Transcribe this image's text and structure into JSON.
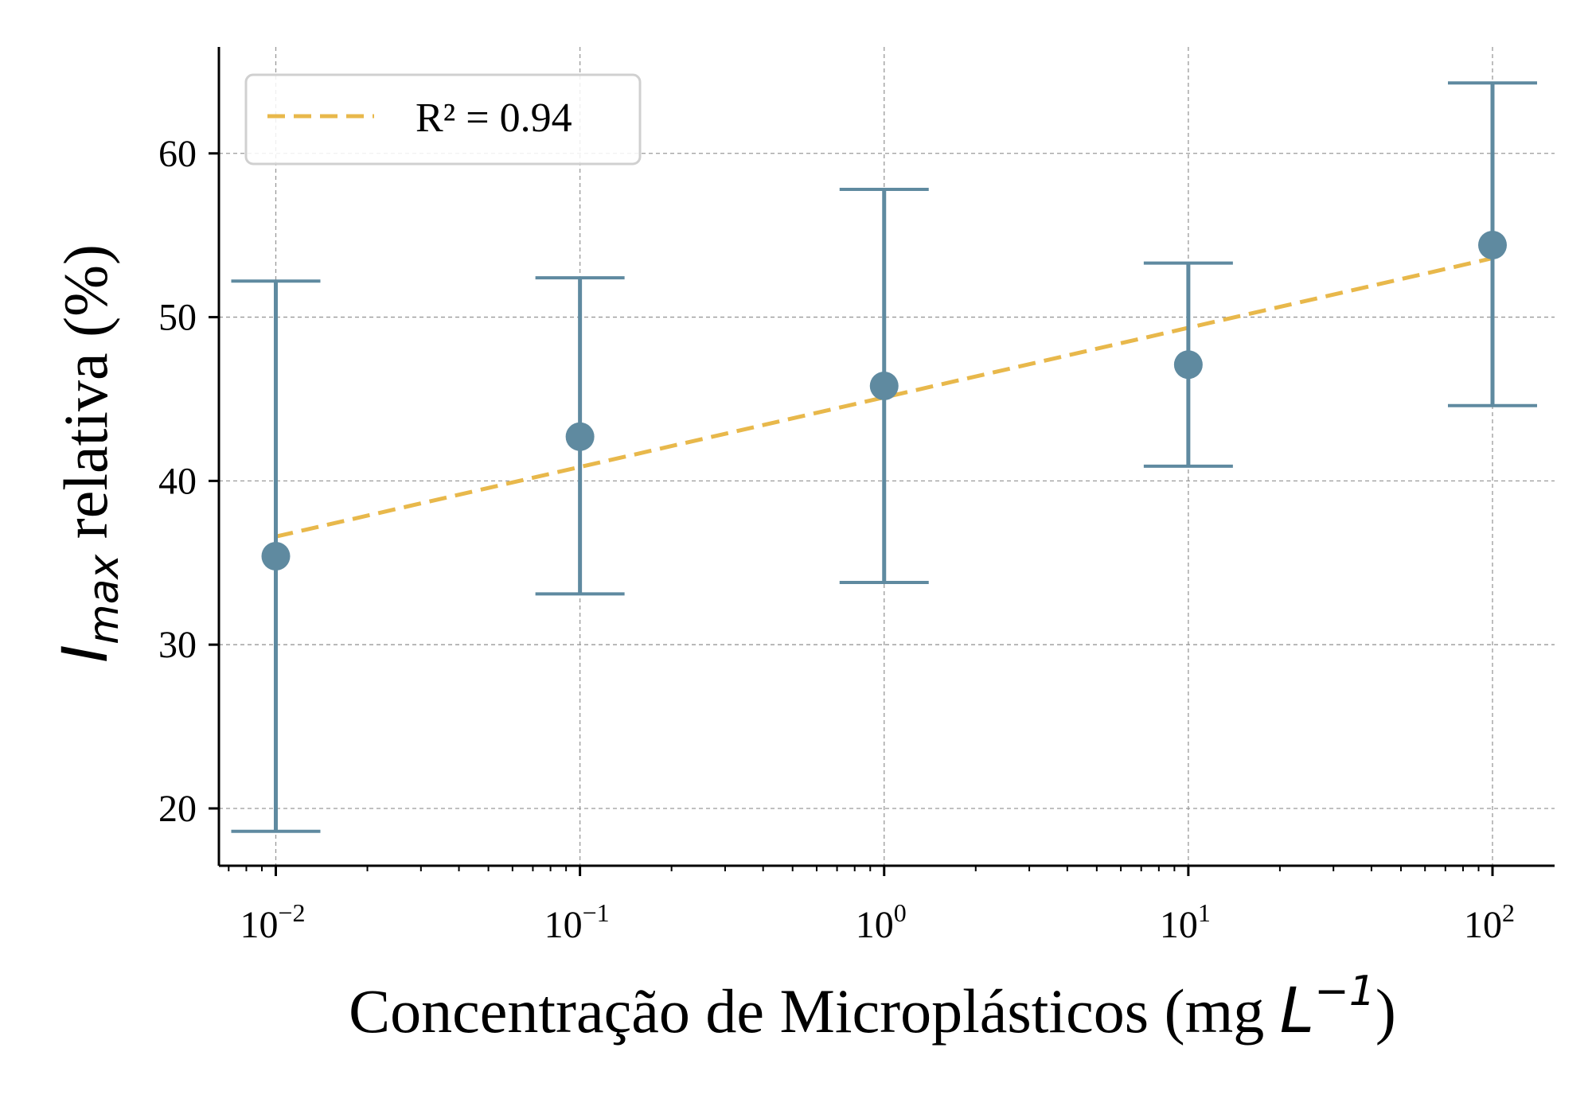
{
  "chart_data": {
    "type": "scatter",
    "x_scale": "log",
    "x": [
      0.01,
      0.1,
      1,
      10,
      100
    ],
    "series": [
      {
        "kind": "points-with-error-bars",
        "color": "#5f8aa0",
        "y": [
          35.4,
          42.7,
          45.8,
          47.1,
          54.4
        ],
        "y_low": [
          18.6,
          33.1,
          33.8,
          40.9,
          44.6
        ],
        "y_high": [
          52.2,
          52.4,
          57.8,
          53.3,
          64.3
        ]
      },
      {
        "name": "R² = 0.94",
        "kind": "fit-line",
        "color": "#e8b84b",
        "x_range": [
          0.01,
          100
        ],
        "y_at_ends": [
          36.6,
          53.6
        ]
      }
    ],
    "xlim": [
      0.0065,
      160
    ],
    "ylim": [
      16.5,
      66.5
    ],
    "x_ticks": [
      {
        "base": "10",
        "exp": "−2"
      },
      {
        "base": "10",
        "exp": "−1"
      },
      {
        "base": "10",
        "exp": "0"
      },
      {
        "base": "10",
        "exp": "1"
      },
      {
        "base": "10",
        "exp": "2"
      }
    ],
    "y_ticks": [
      "20",
      "30",
      "40",
      "50",
      "60"
    ],
    "xlabel": {
      "text": "Concentração de Microplásticos (mg ",
      "unit": "L",
      "unit_exp": "−1",
      "close": ")"
    },
    "ylabel": {
      "symbol": "I",
      "subscript": "max",
      "text": " relativa (%)"
    },
    "legend": {
      "position": "top-left",
      "entries": [
        "R² = 0.94"
      ]
    },
    "grid": true,
    "colors": {
      "points": "#5f8aa0",
      "fit": "#e8b84b",
      "grid": "#9a9a9a",
      "axis": "#000000"
    }
  }
}
